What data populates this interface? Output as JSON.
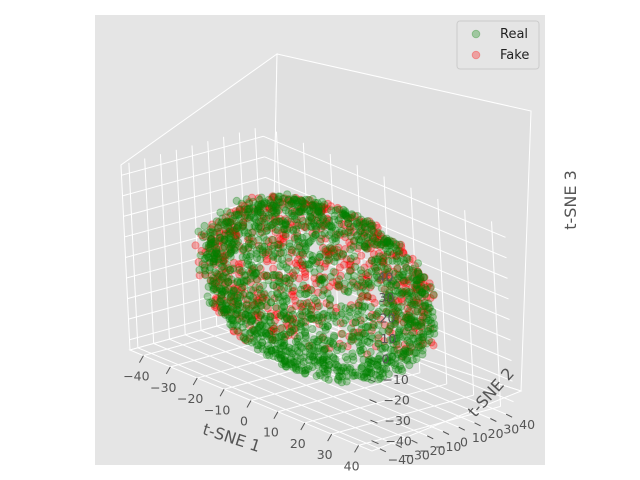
{
  "chart_data": {
    "type": "scatter",
    "projection": "3d",
    "title": "",
    "xlabel": "t-SNE 1",
    "ylabel": "t-SNE 2",
    "zlabel": "t-SNE 3",
    "xlim": [
      -45,
      45
    ],
    "ylim": [
      -45,
      45
    ],
    "zlim": [
      -45,
      45
    ],
    "xticks": [
      "−40",
      "−30",
      "−20",
      "−10",
      "0",
      "10",
      "20",
      "30",
      "40"
    ],
    "yticks": [
      "−40",
      "−30",
      "−20",
      "−10",
      "0",
      "10",
      "20",
      "30",
      "40"
    ],
    "zticks": [
      "−40",
      "−30",
      "−20",
      "−10",
      "0",
      "10",
      "20",
      "30",
      "40"
    ],
    "grid": true,
    "legend_position": "top-right",
    "series": [
      {
        "name": "Real",
        "color": "#008000",
        "alpha": 0.3,
        "distribution": "spherical cloud centered near origin, radius about 40"
      },
      {
        "name": "Fake",
        "color": "#ff0000",
        "alpha": 0.3,
        "distribution": "spherical cloud centered near origin, radius about 40, mostly hidden behind Real, visible on upper/left surface"
      }
    ]
  }
}
